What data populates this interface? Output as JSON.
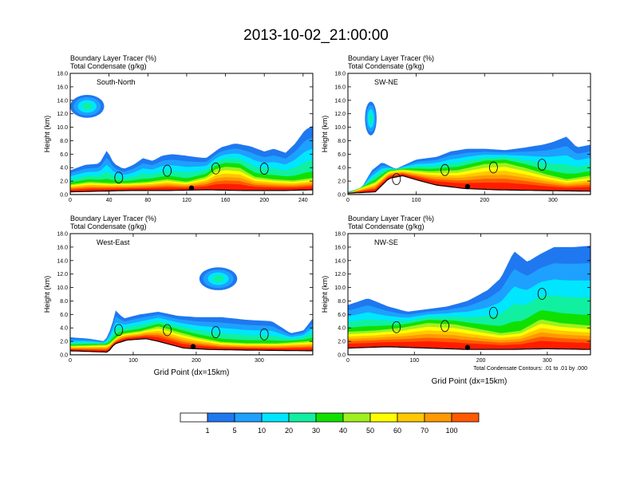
{
  "figure": {
    "title": "2013-10-02_21:00:00",
    "contour_note": "Total Condensate Contours: .01 to .01 by .000"
  },
  "colors": {
    "levels": [
      "#ffffff",
      "#1f78f0",
      "#1ea0ff",
      "#00e6ff",
      "#10f0a0",
      "#10e000",
      "#a0f020",
      "#ffff00",
      "#ffc800",
      "#ff9a00",
      "#ff5a00",
      "#ff1c00"
    ],
    "contour": "#000000"
  },
  "chart_data": [
    {
      "type": "heatmap",
      "name": "South-North",
      "title_line1": "Boundary Layer Tracer   (%)",
      "title_line2": "Total Condensate   (g/kg)",
      "ylabel": "Height (km)",
      "xlabel": "",
      "xlim": [
        0,
        250
      ],
      "ylim": [
        0,
        18
      ],
      "xticks": [
        0,
        40,
        80,
        120,
        160,
        200,
        240
      ],
      "yticks": [
        0.0,
        2.0,
        4.0,
        6.0,
        8.0,
        10.0,
        12.0,
        14.0,
        16.0,
        18.0
      ],
      "legend_labels": [],
      "outline_top_km": [
        [
          0,
          3.6
        ],
        [
          15,
          4.4
        ],
        [
          30,
          4.6
        ],
        [
          38,
          6.6
        ],
        [
          45,
          4.6
        ],
        [
          55,
          3.8
        ],
        [
          65,
          4.4
        ],
        [
          75,
          5.4
        ],
        [
          85,
          5.0
        ],
        [
          95,
          5.8
        ],
        [
          105,
          6.0
        ],
        [
          118,
          5.8
        ],
        [
          128,
          5.6
        ],
        [
          140,
          5.4
        ],
        [
          155,
          7.0
        ],
        [
          170,
          7.6
        ],
        [
          185,
          7.2
        ],
        [
          200,
          6.4
        ],
        [
          210,
          6.8
        ],
        [
          222,
          6.2
        ],
        [
          232,
          7.6
        ],
        [
          242,
          9.6
        ],
        [
          250,
          10.2
        ]
      ],
      "core_top_km": [
        [
          0,
          1.6
        ],
        [
          20,
          2.0
        ],
        [
          40,
          1.8
        ],
        [
          60,
          1.8
        ],
        [
          80,
          2.0
        ],
        [
          100,
          2.4
        ],
        [
          120,
          2.0
        ],
        [
          140,
          2.8
        ],
        [
          150,
          4.0
        ],
        [
          160,
          4.4
        ],
        [
          175,
          4.2
        ],
        [
          190,
          2.8
        ],
        [
          210,
          2.4
        ],
        [
          230,
          2.2
        ],
        [
          250,
          2.6
        ]
      ],
      "ground_km": [
        [
          0,
          0.4
        ],
        [
          30,
          0.5
        ],
        [
          60,
          0.6
        ],
        [
          100,
          0.6
        ],
        [
          140,
          0.7
        ],
        [
          180,
          0.6
        ],
        [
          220,
          0.6
        ],
        [
          250,
          0.7
        ]
      ],
      "upper_patches": [
        {
          "x": [
            0,
            35
          ],
          "y": [
            11.4,
            14.8
          ]
        }
      ],
      "marker_x": 125
    },
    {
      "type": "heatmap",
      "name": "SW-NE",
      "title_line1": "Boundary Layer Tracer   (%)",
      "title_line2": "Total Condensate   (g/kg)",
      "ylabel": "Height (km)",
      "xlabel": "",
      "xlim": [
        0,
        355
      ],
      "ylim": [
        0,
        18
      ],
      "xticks": [
        0,
        100,
        200,
        300
      ],
      "yticks": [
        0.0,
        2.0,
        4.0,
        6.0,
        8.0,
        10.0,
        12.0,
        14.0,
        16.0,
        18.0
      ],
      "legend_labels": [],
      "outline_top_km": [
        [
          0,
          0.4
        ],
        [
          20,
          1.0
        ],
        [
          35,
          3.6
        ],
        [
          50,
          4.8
        ],
        [
          70,
          3.8
        ],
        [
          100,
          5.2
        ],
        [
          130,
          5.6
        ],
        [
          150,
          6.4
        ],
        [
          175,
          6.8
        ],
        [
          200,
          6.8
        ],
        [
          230,
          6.6
        ],
        [
          260,
          7.0
        ],
        [
          285,
          7.4
        ],
        [
          300,
          7.8
        ],
        [
          320,
          8.6
        ],
        [
          335,
          7.0
        ],
        [
          355,
          7.4
        ]
      ],
      "core_top_km": [
        [
          0,
          0.2
        ],
        [
          40,
          2.0
        ],
        [
          60,
          3.6
        ],
        [
          80,
          3.8
        ],
        [
          120,
          3.6
        ],
        [
          160,
          3.8
        ],
        [
          200,
          4.8
        ],
        [
          230,
          5.0
        ],
        [
          260,
          4.2
        ],
        [
          290,
          3.2
        ],
        [
          320,
          2.4
        ],
        [
          355,
          3.0
        ]
      ],
      "ground_km": [
        [
          0,
          0.2
        ],
        [
          40,
          0.4
        ],
        [
          60,
          2.4
        ],
        [
          80,
          2.8
        ],
        [
          100,
          2.2
        ],
        [
          130,
          1.4
        ],
        [
          170,
          0.9
        ],
        [
          220,
          0.7
        ],
        [
          280,
          0.6
        ],
        [
          355,
          0.5
        ]
      ],
      "upper_patches": [
        {
          "x": [
            25,
            42
          ],
          "y": [
            8.8,
            13.8
          ]
        }
      ],
      "marker_x": 175
    },
    {
      "type": "heatmap",
      "name": "West-East",
      "title_line1": "Boundary Layer Tracer   (%)",
      "title_line2": "Total Condensate   (g/kg)",
      "ylabel": "Height (km)",
      "xlabel": "Grid Point (dx=15km)",
      "xlim": [
        0,
        385
      ],
      "ylim": [
        0,
        18
      ],
      "xticks": [
        0,
        100,
        200,
        300
      ],
      "yticks": [
        0.0,
        2.0,
        4.0,
        6.0,
        8.0,
        10.0,
        12.0,
        14.0,
        16.0,
        18.0
      ],
      "legend_labels": [],
      "outline_top_km": [
        [
          0,
          2.6
        ],
        [
          30,
          2.4
        ],
        [
          55,
          2.0
        ],
        [
          65,
          4.0
        ],
        [
          72,
          6.6
        ],
        [
          85,
          5.4
        ],
        [
          110,
          6.0
        ],
        [
          140,
          6.4
        ],
        [
          170,
          5.8
        ],
        [
          200,
          5.6
        ],
        [
          240,
          5.6
        ],
        [
          280,
          5.2
        ],
        [
          320,
          5.0
        ],
        [
          350,
          3.2
        ],
        [
          370,
          3.6
        ],
        [
          385,
          5.4
        ]
      ],
      "core_top_km": [
        [
          0,
          1.4
        ],
        [
          60,
          1.6
        ],
        [
          80,
          3.2
        ],
        [
          110,
          3.6
        ],
        [
          140,
          4.4
        ],
        [
          170,
          3.6
        ],
        [
          200,
          2.8
        ],
        [
          240,
          2.0
        ],
        [
          280,
          1.8
        ],
        [
          330,
          1.8
        ],
        [
          385,
          2.2
        ]
      ],
      "ground_km": [
        [
          0,
          0.6
        ],
        [
          60,
          0.4
        ],
        [
          70,
          1.6
        ],
        [
          90,
          2.2
        ],
        [
          120,
          2.4
        ],
        [
          140,
          2.0
        ],
        [
          180,
          1.0
        ],
        [
          220,
          0.8
        ],
        [
          280,
          0.7
        ],
        [
          385,
          0.6
        ]
      ],
      "upper_patches": [
        {
          "x": [
            205,
            265
          ],
          "y": [
            9.6,
            13.0
          ]
        }
      ],
      "marker_x": 195
    },
    {
      "type": "heatmap",
      "name": "NW-SE",
      "title_line1": "Boundary Layer Tracer   (%)",
      "title_line2": "Total Condensate   (g/kg)",
      "ylabel": "Height (km)",
      "xlabel": "Grid Point (dx=15km)",
      "xlim": [
        0,
        365
      ],
      "ylim": [
        0,
        18
      ],
      "xticks": [
        0,
        100,
        200,
        300
      ],
      "yticks": [
        0.0,
        2.0,
        4.0,
        6.0,
        8.0,
        10.0,
        12.0,
        14.0,
        16.0,
        18.0
      ],
      "legend_labels": [],
      "outline_top_km": [
        [
          0,
          7.4
        ],
        [
          30,
          8.4
        ],
        [
          60,
          7.2
        ],
        [
          90,
          6.4
        ],
        [
          120,
          6.8
        ],
        [
          150,
          7.2
        ],
        [
          180,
          8.0
        ],
        [
          210,
          9.6
        ],
        [
          230,
          11.4
        ],
        [
          250,
          15.4
        ],
        [
          270,
          13.8
        ],
        [
          290,
          15.0
        ],
        [
          310,
          16.0
        ],
        [
          340,
          16.0
        ],
        [
          365,
          16.2
        ]
      ],
      "core_top_km": [
        [
          0,
          3.6
        ],
        [
          40,
          3.8
        ],
        [
          80,
          4.2
        ],
        [
          120,
          5.0
        ],
        [
          160,
          4.8
        ],
        [
          200,
          4.0
        ],
        [
          230,
          3.4
        ],
        [
          260,
          3.8
        ],
        [
          290,
          5.6
        ],
        [
          320,
          5.0
        ],
        [
          365,
          4.6
        ]
      ],
      "ground_km": [
        [
          0,
          1.0
        ],
        [
          60,
          1.2
        ],
        [
          120,
          1.0
        ],
        [
          180,
          0.8
        ],
        [
          240,
          0.8
        ],
        [
          300,
          0.9
        ],
        [
          365,
          0.8
        ]
      ],
      "upper_patches": [],
      "marker_x": 180
    }
  ],
  "colorbar": {
    "labels": [
      "1",
      "5",
      "10",
      "20",
      "30",
      "40",
      "50",
      "60",
      "70",
      "100"
    ]
  }
}
